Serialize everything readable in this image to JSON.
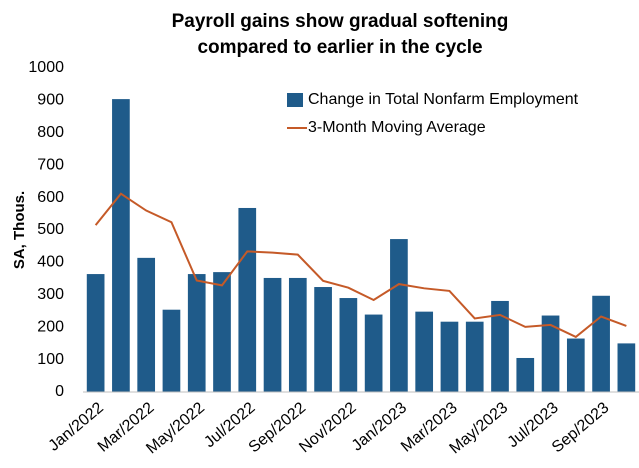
{
  "chart_data": {
    "type": "bar_line",
    "title": [
      "Payroll gains show gradual softening",
      "compared to earlier in the cycle"
    ],
    "y_label": "SA, Thous.",
    "categories": [
      "Jan/2022",
      null,
      "Mar/2022",
      null,
      "May/2022",
      null,
      "Jul/2022",
      null,
      "Sep/2022",
      null,
      "Nov/2022",
      null,
      "Jan/2023",
      null,
      "Mar/2023",
      null,
      "May/2023",
      null,
      "Jul/2023",
      null,
      "Sep/2023",
      null
    ],
    "series": [
      {
        "name": "Change in Total Nonfarm Employment",
        "type": "bar",
        "color": "#1f5b8a",
        "values": [
          364,
          904,
          414,
          254,
          364,
          370,
          568,
          352,
          352,
          324,
          290,
          239,
          472,
          248,
          217,
          217,
          281,
          105,
          236,
          165,
          297,
          150
        ]
      },
      {
        "name": "3-Month Moving Average",
        "type": "line",
        "color": "#c55a28",
        "values": [
          515,
          612,
          560,
          524,
          344,
          329,
          434,
          430,
          424,
          343,
          322,
          284,
          333,
          320,
          312,
          227,
          238,
          201,
          207,
          170,
          233,
          204
        ]
      }
    ],
    "ylim": [
      0,
      1000
    ],
    "yticks": [
      0,
      100,
      200,
      300,
      400,
      500,
      600,
      700,
      800,
      900,
      1000
    ],
    "grid": false,
    "legend": "upper right"
  }
}
